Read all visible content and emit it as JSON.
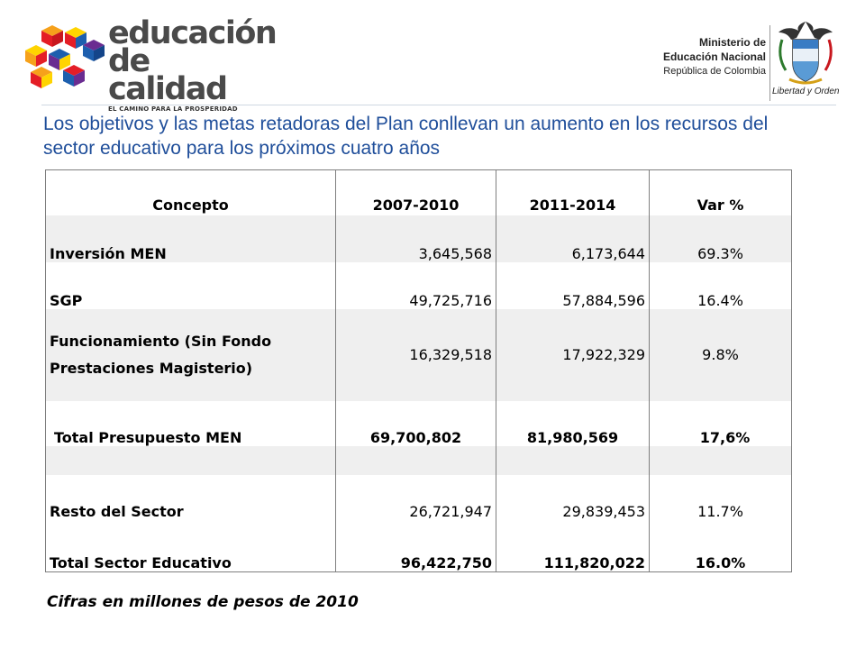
{
  "header": {
    "brand": {
      "line1": "educación",
      "line2": "de calidad",
      "tagline": "EL CAMINO PARA LA PROSPERIDAD",
      "cube_colors": [
        "#e41e26",
        "#f6a11b",
        "#ffd400",
        "#1d5fae",
        "#6a2c91"
      ]
    },
    "ministry": {
      "line1": "Ministerio de",
      "line2": "Educación Nacional",
      "line3": "República de Colombia",
      "motto": "Libertad y Orden",
      "crest_icon": "colombia-coat-of-arms-icon"
    }
  },
  "headline": "Los objetivos y las metas retadoras del Plan conllevan un aumento en los recursos del sector educativo para los próximos cuatro años",
  "table": {
    "headers": [
      "Concepto",
      "2007-2010",
      "2011-2014",
      "Var %"
    ],
    "rows": [
      {
        "concepto": "Inversión MEN",
        "p1": "3,645,568",
        "p2": "6,173,644",
        "var": "69.3%"
      },
      {
        "concepto": "SGP",
        "p1": "49,725,716",
        "p2": "57,884,596",
        "var": "16.4%"
      },
      {
        "concepto": "Funcionamiento (Sin Fondo Prestaciones Magisterio)",
        "p1": "16,329,518",
        "p2": "17,922,329",
        "var": "9.8%"
      },
      {
        "concepto": "Total Presupuesto MEN",
        "p1": "69,700,802",
        "p2": "81,980,569",
        "var": "17,6%"
      },
      {
        "concepto": "",
        "p1": "",
        "p2": "",
        "var": ""
      },
      {
        "concepto": "Resto del Sector",
        "p1": "26,721,947",
        "p2": "29,839,453",
        "var": "11.7%"
      },
      {
        "concepto": "Total Sector Educativo",
        "p1": "96,422,750",
        "p2": "111,820,022",
        "var": "16.0%"
      }
    ]
  },
  "footnote": "Cifras en millones de pesos de 2010",
  "colors": {
    "headline": "#1f4e9a",
    "row_band": "#efefef",
    "border": "#7f7f7f"
  }
}
